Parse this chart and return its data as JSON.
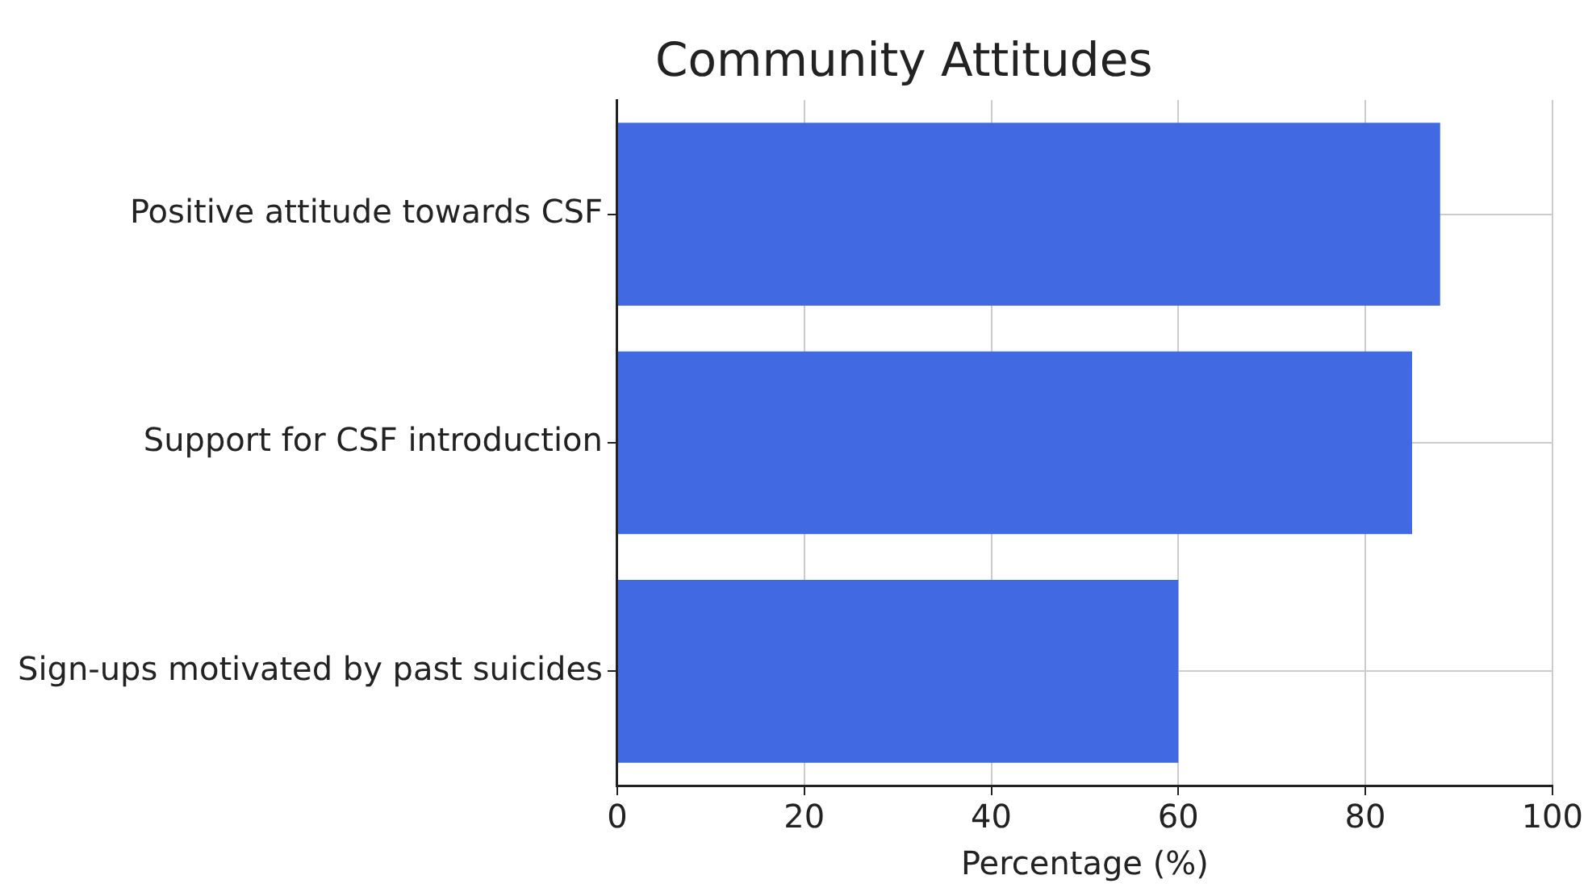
{
  "chart_data": {
    "type": "bar",
    "orientation": "horizontal",
    "title": "Community Attitudes",
    "xlabel": "Percentage (%)",
    "categories": [
      "Positive attitude towards CSF",
      "Support for CSF introduction",
      "Sign-ups motivated by past suicides"
    ],
    "values": [
      88,
      85,
      60
    ],
    "color": "#4169e1",
    "xlim": [
      0,
      100
    ],
    "xticks": [
      0,
      20,
      40,
      60,
      80,
      100
    ],
    "grid": true,
    "legend": false
  }
}
